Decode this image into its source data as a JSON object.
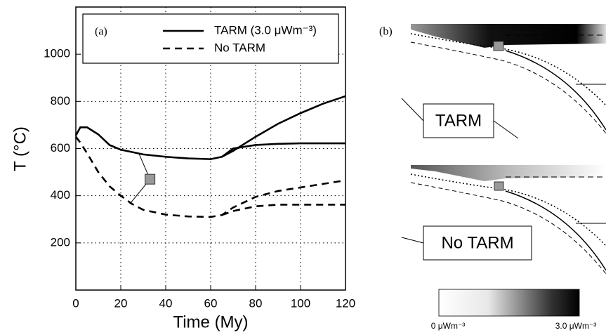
{
  "chart_data": {
    "type": "line",
    "panel_label": "(a)",
    "x_label": "Time (My)",
    "y_label": "T (°C)",
    "x": [
      0,
      2,
      5,
      10,
      15,
      20,
      25,
      30,
      40,
      50,
      60,
      65,
      70,
      80,
      90,
      100,
      110,
      120
    ],
    "series": [
      {
        "name": "TARM (3.0 μWm⁻³)",
        "color": "#000000",
        "dash": "none",
        "values": [
          655,
          690,
          690,
          660,
          615,
          595,
          585,
          575,
          565,
          558,
          555,
          565,
          590,
          650,
          705,
          750,
          790,
          822
        ],
        "values_lower": [
          null,
          null,
          null,
          null,
          null,
          null,
          null,
          null,
          null,
          null,
          null,
          565,
          600,
          615,
          620,
          622,
          622,
          622
        ]
      },
      {
        "name": "No TARM",
        "color": "#000000",
        "dash": "10,7",
        "values": [
          650,
          625,
          580,
          500,
          440,
          400,
          365,
          340,
          320,
          312,
          310,
          318,
          350,
          395,
          420,
          435,
          450,
          465
        ],
        "values_lower": [
          null,
          null,
          null,
          null,
          null,
          null,
          null,
          null,
          null,
          null,
          null,
          318,
          335,
          355,
          362,
          362,
          362,
          362
        ]
      }
    ],
    "annotation_marker": {
      "x": 33,
      "y": 470,
      "link_x": [
        28,
        24
      ],
      "link_y": [
        580,
        365
      ]
    },
    "xlim": [
      0,
      120
    ],
    "xticks": [
      0,
      20,
      40,
      60,
      80,
      100,
      120
    ],
    "ylim": [
      0,
      1200
    ],
    "yticks": [
      200,
      400,
      600,
      800,
      1000
    ],
    "grid": true
  },
  "panel_b": {
    "label": "(b)",
    "top_label": "TARM",
    "bottom_label": "No TARM",
    "colorbar": {
      "min_label": "0 μWm⁻³",
      "max_label": "3.0 μWm⁻³"
    }
  }
}
